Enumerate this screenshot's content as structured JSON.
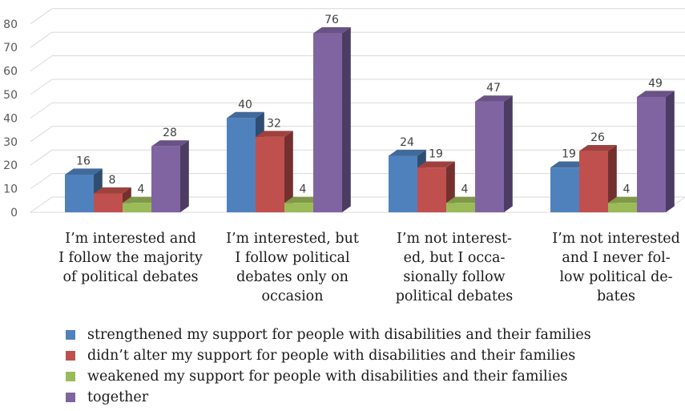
{
  "chart_data": {
    "type": "bar",
    "title": "",
    "xlabel": "",
    "ylabel": "",
    "ylim": [
      0,
      80
    ],
    "yticks": [
      0,
      10,
      20,
      30,
      40,
      50,
      60,
      70,
      80
    ],
    "grid": true,
    "legend_position": "bottom",
    "categories": [
      "I’m interested and\nI follow the majority\nof political debates",
      "I’m interested, but\nI follow political\ndebates only on\noccasion",
      "I’m not interest-\ned, but I occa-\nsionally follow\npolitical debates",
      "I’m not interested\nand I never fol-\nlow political de-\nbates"
    ],
    "series": [
      {
        "name": "strengthened my support for people with disabilities and their families",
        "color": "#4f81bd",
        "values": [
          16,
          40,
          24,
          19
        ]
      },
      {
        "name": "didn’t alter my support for people with disabilities and their families",
        "color": "#c0504d",
        "values": [
          8,
          32,
          19,
          26
        ]
      },
      {
        "name": "weakened my support for people with disabilities and their families",
        "color": "#9bbb59",
        "values": [
          4,
          4,
          4,
          4
        ]
      },
      {
        "name": "together",
        "color": "#8064a2",
        "values": [
          28,
          76,
          47,
          49
        ]
      }
    ]
  }
}
